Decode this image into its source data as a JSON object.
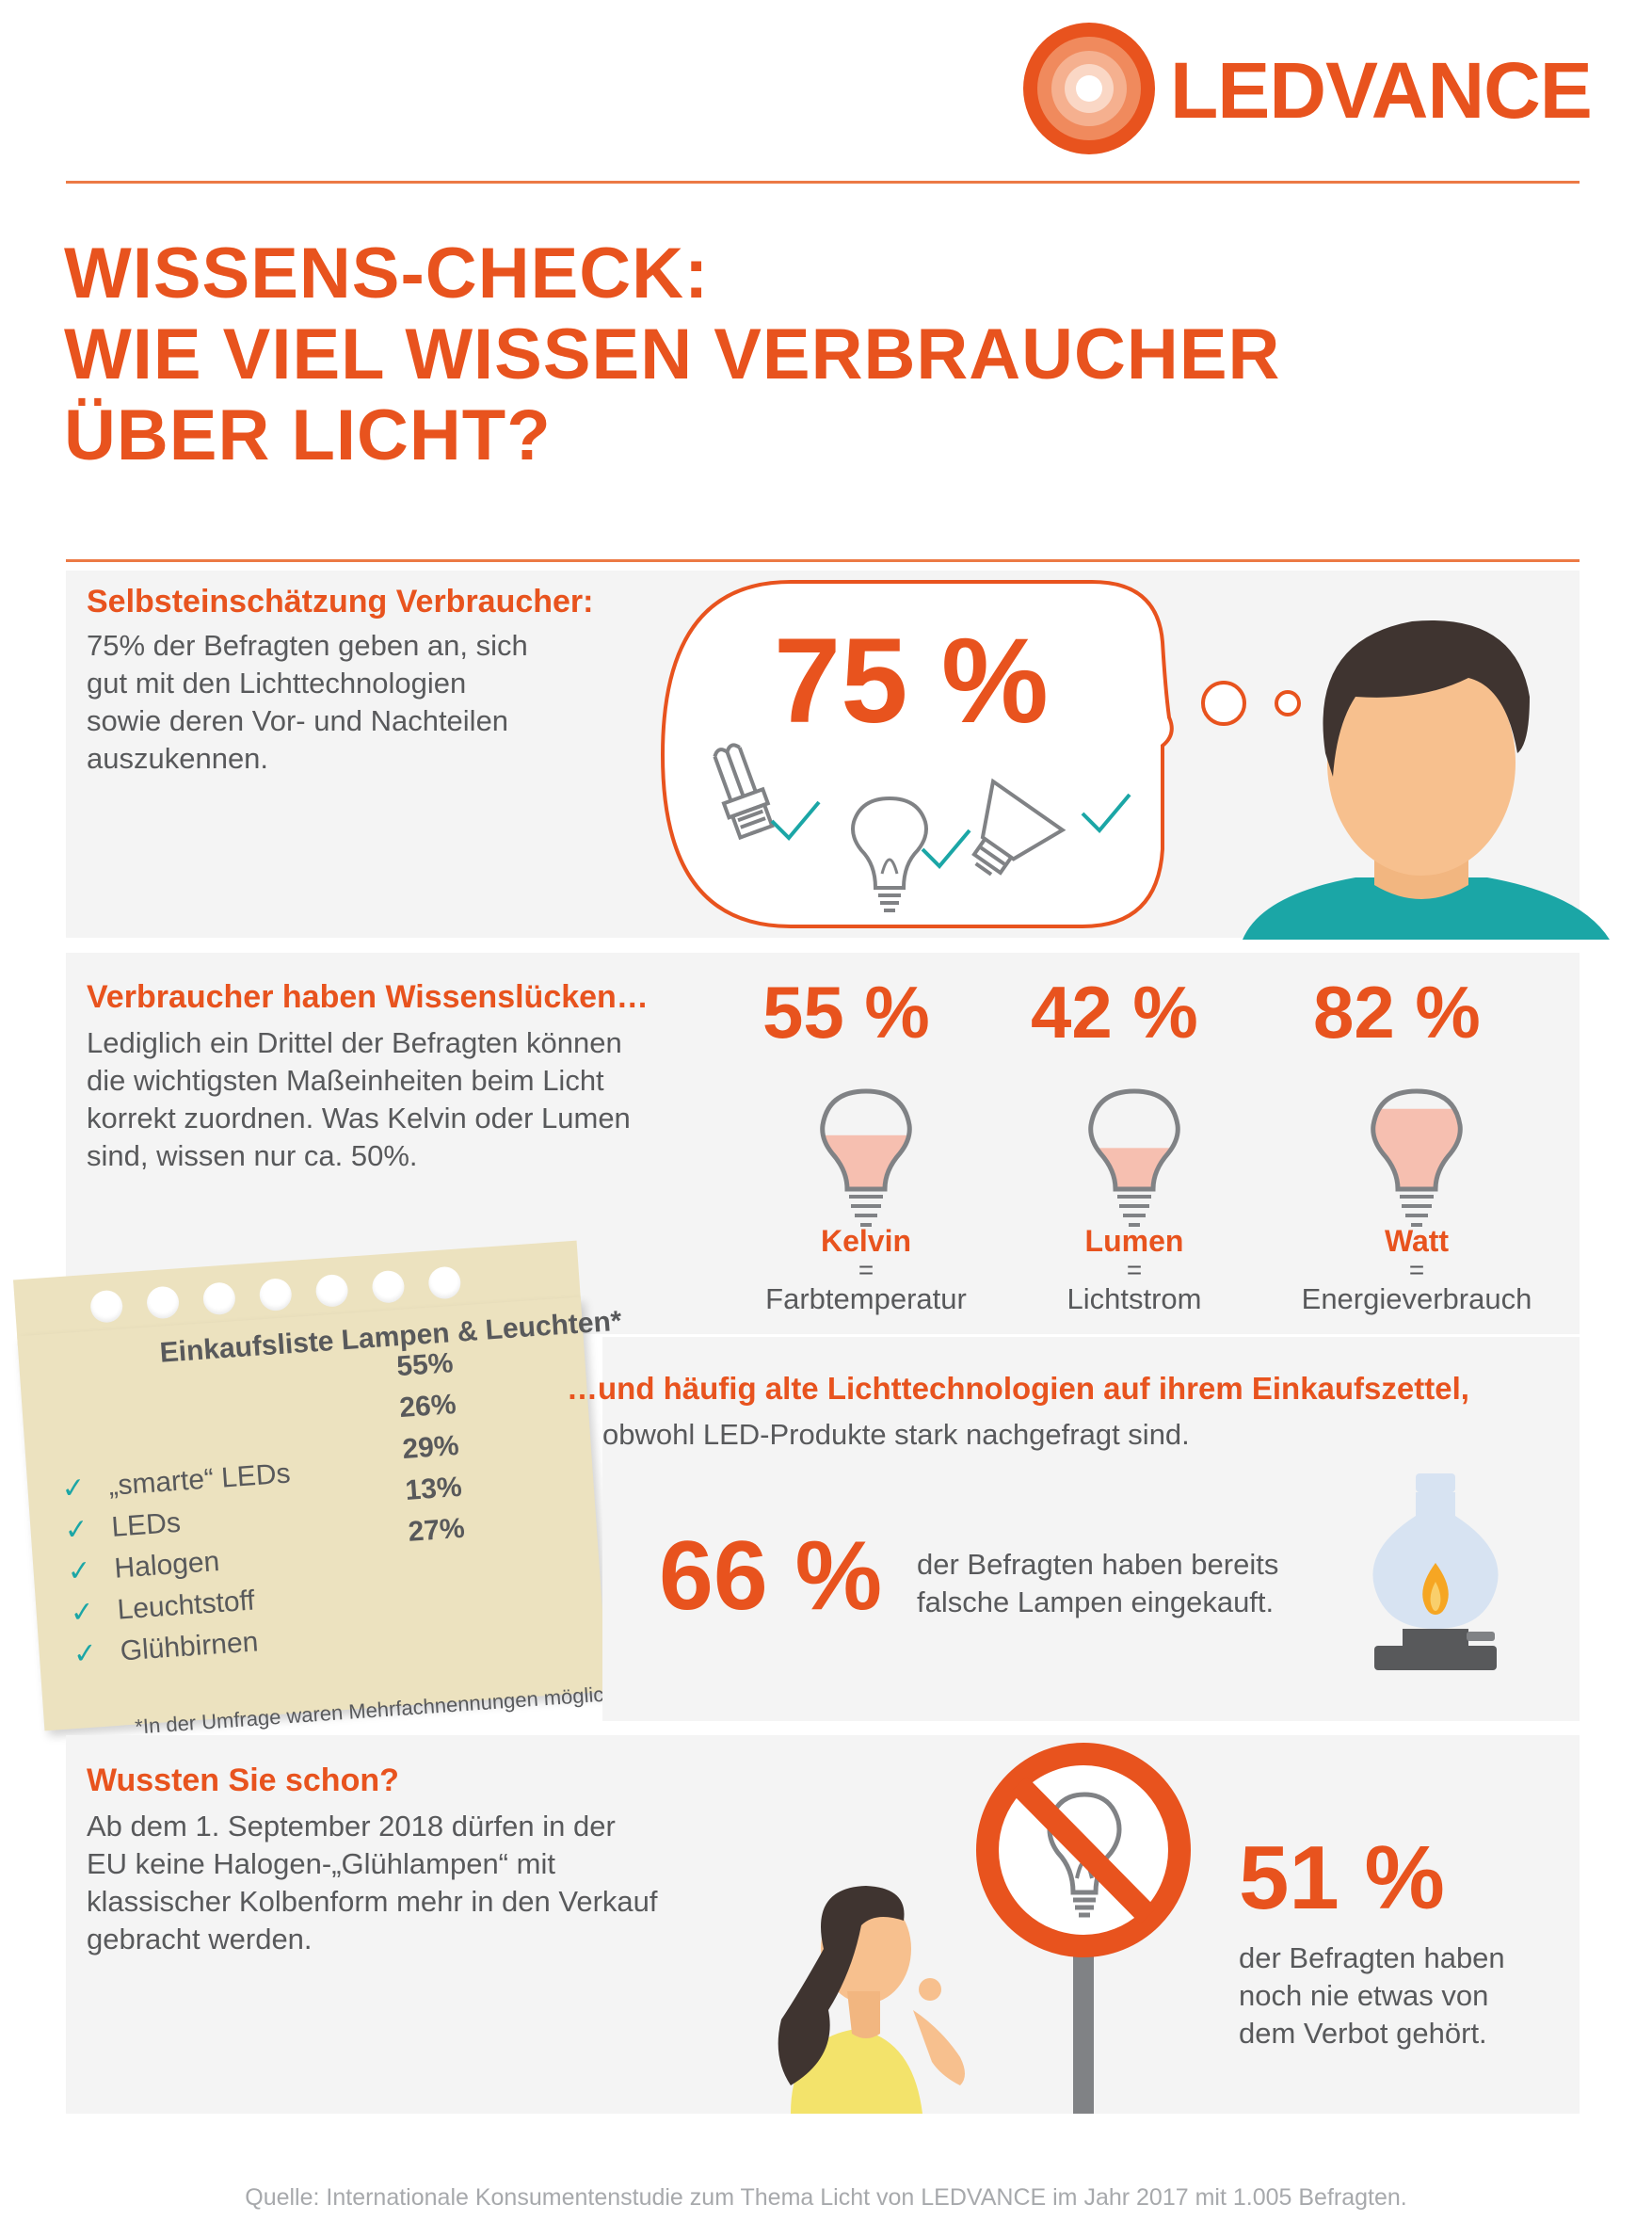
{
  "brand": {
    "name": "LEDVANCE",
    "color": "#e8531e",
    "icon": "ledvance-rings-logo"
  },
  "title": {
    "lines": [
      "WISSENS-CHECK:",
      "WIE VIEL WISSEN VERBRAUCHER",
      "ÜBER LICHT?"
    ]
  },
  "section1": {
    "heading": "Selbsteinschätzung Verbraucher:",
    "text": [
      "75% der Befragten geben an, sich",
      "gut mit den Lichttechnologien",
      "sowie deren Vor- und Nachteilen",
      "auszukennen."
    ],
    "stat": "75 %",
    "icons": [
      "cfl-bulb-icon",
      "classic-bulb-icon",
      "reflector-bulb-icon",
      "check-icon",
      "man-thinking-illustration"
    ]
  },
  "section2": {
    "heading": "Verbraucher haben Wissenslücken…",
    "text": [
      "Lediglich ein Drittel der Befragten können",
      "die wichtigsten Maßeinheiten beim Licht",
      "korrekt zuordnen. Was Kelvin oder Lumen",
      "sind, wissen nur ca. 50%."
    ],
    "units": [
      {
        "pct": "55 %",
        "fill": 0.55,
        "unit": "Kelvin",
        "eq": "=",
        "meaning": "Farbtemperatur"
      },
      {
        "pct": "42 %",
        "fill": 0.42,
        "unit": "Lumen",
        "eq": "=",
        "meaning": "Lichtstrom"
      },
      {
        "pct": "82 %",
        "fill": 0.82,
        "unit": "Watt",
        "eq": "=",
        "meaning": "Energieverbrauch"
      }
    ]
  },
  "shopping_list": {
    "title": "Einkaufsliste Lampen & Leuchten*",
    "items": [
      {
        "label": "„smarte“ LEDs",
        "pct": "55%"
      },
      {
        "label": "LEDs",
        "pct": "26%"
      },
      {
        "label": "Halogen",
        "pct": "29%"
      },
      {
        "label": "Leuchtstoff",
        "pct": "13%"
      },
      {
        "label": "Glühbirnen",
        "pct": "27%"
      }
    ],
    "check": "✓",
    "footnote": "*In der Umfrage waren Mehrfachnennungen möglich."
  },
  "section3": {
    "heading": "…und häufig alte Lichttechnologien auf ihrem Einkaufszettel,",
    "subheading": "obwohl LED-Produkte stark nachgefragt sind.",
    "stat": "66 %",
    "stat_text": [
      "der Befragten haben bereits",
      "falsche Lampen eingekauft."
    ],
    "icon": "oil-lamp-icon"
  },
  "section4": {
    "heading": "Wussten Sie schon?",
    "text": [
      "Ab dem 1. September 2018 dürfen in der",
      "EU keine Halogen-„Glühlampen“ mit",
      "klassischer Kolbenform mehr in den Verkauf",
      "gebracht werden."
    ],
    "stat": "51 %",
    "stat_text": [
      "der Befragten haben",
      "noch nie etwas von",
      "dem Verbot gehört."
    ],
    "icons": [
      "prohibited-bulb-sign-icon",
      "woman-wondering-illustration"
    ]
  },
  "source": "Quelle: Internationale Konsumentenstudie zum Thema Licht von LEDVANCE im Jahr 2017 mit 1.005 Befragten.",
  "colors": {
    "accent": "#e8531e",
    "teal": "#1ba6a6",
    "panel": "#f4f4f4",
    "bulb_fill": "#f6bfb0",
    "note": "#ece2bf"
  }
}
